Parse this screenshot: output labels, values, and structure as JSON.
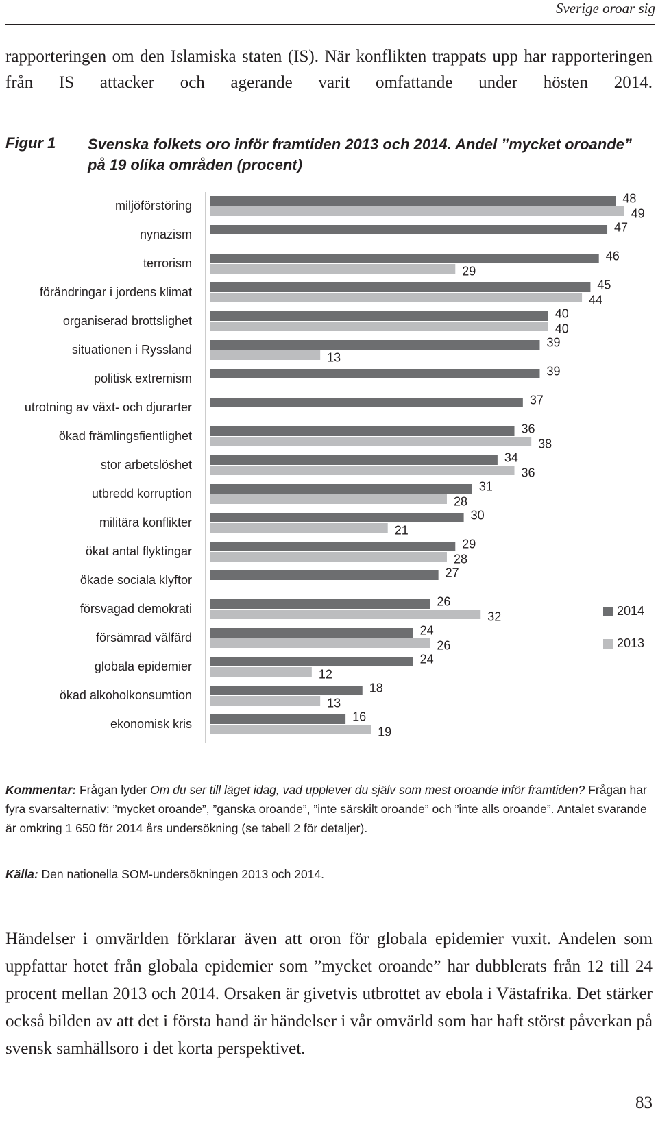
{
  "header": "Sverige oroar sig",
  "paragraph_1": "rapporteringen om den Islamiska staten (IS). När konflikten trappats upp har rapporteringen från IS attacker och agerande varit omfattande under hösten 2014.",
  "chart_data": {
    "type": "bar",
    "horizontal": true,
    "figure_label": "Figur 1",
    "title": "Svenska folkets oro inför framtiden 2013 och 2014. Andel ”mycket oroande” på 19 olika områden (procent)",
    "categories": [
      "miljöförstöring",
      "nynazism",
      "terrorism",
      "förändringar i jordens klimat",
      "organiserad brottslighet",
      "situationen i Ryssland",
      "politisk extremism",
      "utrotning av växt- och djurarter",
      "ökad främlingsfientlighet",
      "stor arbetslöshet",
      "utbredd korruption",
      "militära konflikter",
      "ökat antal flyktingar",
      "ökade sociala klyftor",
      "försvagad demokrati",
      "försämrad välfärd",
      "globala epidemier",
      "ökad alkoholkonsumtion",
      "ekonomisk kris"
    ],
    "series": [
      {
        "name": "2014",
        "color": "#6d6e70",
        "values": [
          48,
          47,
          46,
          45,
          40,
          39,
          39,
          37,
          36,
          34,
          31,
          30,
          29,
          27,
          26,
          24,
          24,
          18,
          16
        ]
      },
      {
        "name": "2013",
        "color": "#bcbdbf",
        "values": [
          49,
          null,
          29,
          44,
          40,
          13,
          null,
          null,
          38,
          36,
          28,
          21,
          28,
          null,
          32,
          26,
          12,
          13,
          19
        ]
      }
    ],
    "xlim": [
      0,
      50
    ]
  },
  "comment": {
    "label": "Kommentar:",
    "intro": "Frågan lyder",
    "question": "Om du ser till läget idag, vad upplever du själv som mest oroande inför framtiden?",
    "text": "Frågan har fyra svarsalternativ: ”mycket oroande”, ”ganska oroande”, ”inte särskilt oroande” och ”inte alls oroande”. Antalet svarande är omkring 1 650 för 2014 års undersökning (se tabell 2 för detaljer)."
  },
  "source": {
    "label": "Källa:",
    "text": "Den nationella SOM-undersökningen 2013 och 2014."
  },
  "paragraph_2": "Händelser i omvärlden förklarar även att oron för globala epidemier vuxit. Andelen som uppfattar hotet från globala epidemier som ”mycket oroande” har dubblerats från 12 till 24 procent mellan 2013 och 2014. Orsaken är givetvis utbrottet av ebola i Västafrika. Det stärker också bilden av att det i första hand är händelser i vår omvärld som har haft störst påverkan på svensk samhällsoro i det korta perspektivet.",
  "page_number": "83"
}
